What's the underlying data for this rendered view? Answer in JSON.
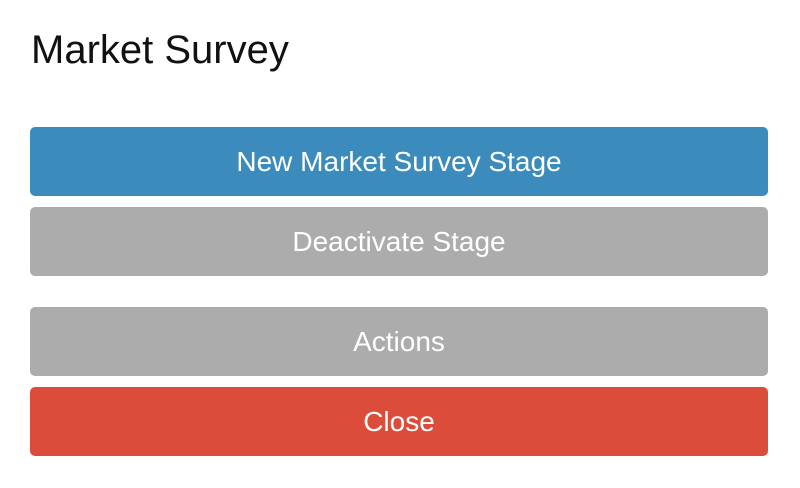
{
  "title": "Market Survey",
  "buttons": {
    "new_stage": {
      "label": "New Market Survey Stage",
      "color": "#3b8cbc"
    },
    "deactivate": {
      "label": "Deactivate Stage",
      "color": "#acacac"
    },
    "actions": {
      "label": "Actions",
      "color": "#acacac"
    },
    "close": {
      "label": "Close",
      "color": "#dc4c3a"
    }
  }
}
